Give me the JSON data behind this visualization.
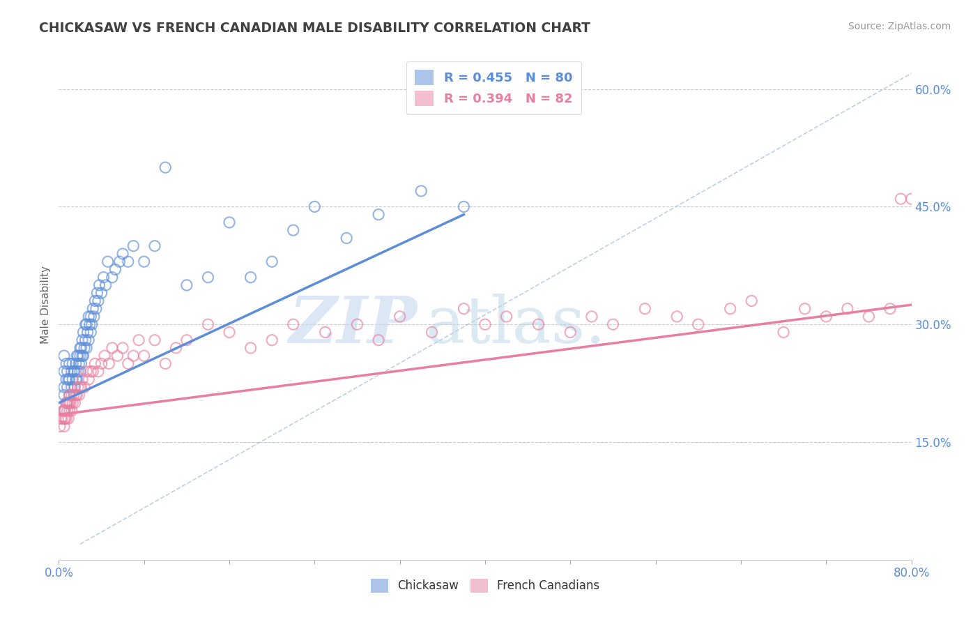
{
  "title": "CHICKASAW VS FRENCH CANADIAN MALE DISABILITY CORRELATION CHART",
  "source": "Source: ZipAtlas.com",
  "ylabel": "Male Disability",
  "xlim": [
    0.0,
    0.8
  ],
  "ylim": [
    0.0,
    0.65
  ],
  "x_ticks": [
    0.0,
    0.08,
    0.16,
    0.24,
    0.32,
    0.4,
    0.48,
    0.56,
    0.64,
    0.72,
    0.8
  ],
  "x_tick_labels": [
    "0.0%",
    "",
    "",
    "",
    "",
    "",
    "",
    "",
    "",
    "",
    "80.0%"
  ],
  "y_ticks": [
    0.15,
    0.3,
    0.45,
    0.6
  ],
  "y_tick_labels": [
    "15.0%",
    "30.0%",
    "45.0%",
    "60.0%"
  ],
  "legend_entries": [
    {
      "label": "R = 0.455   N = 80",
      "color": "#5b8dd9"
    },
    {
      "label": "R = 0.394   N = 82",
      "color": "#e87fa0"
    }
  ],
  "chickasaw_color": "#5b8dd9",
  "french_color": "#e87fa0",
  "chickasaw_scatter": {
    "x": [
      0.005,
      0.005,
      0.005,
      0.005,
      0.005,
      0.007,
      0.007,
      0.007,
      0.008,
      0.008,
      0.009,
      0.01,
      0.01,
      0.01,
      0.012,
      0.012,
      0.013,
      0.013,
      0.014,
      0.015,
      0.015,
      0.016,
      0.016,
      0.017,
      0.017,
      0.018,
      0.018,
      0.019,
      0.02,
      0.02,
      0.02,
      0.021,
      0.021,
      0.022,
      0.022,
      0.023,
      0.023,
      0.024,
      0.025,
      0.025,
      0.026,
      0.026,
      0.027,
      0.028,
      0.028,
      0.029,
      0.03,
      0.03,
      0.031,
      0.032,
      0.033,
      0.034,
      0.035,
      0.036,
      0.037,
      0.038,
      0.04,
      0.042,
      0.044,
      0.046,
      0.05,
      0.053,
      0.057,
      0.06,
      0.065,
      0.07,
      0.08,
      0.09,
      0.1,
      0.12,
      0.14,
      0.16,
      0.18,
      0.2,
      0.22,
      0.24,
      0.27,
      0.3,
      0.34,
      0.38
    ],
    "y": [
      0.19,
      0.21,
      0.22,
      0.24,
      0.26,
      0.2,
      0.23,
      0.25,
      0.22,
      0.24,
      0.23,
      0.21,
      0.23,
      0.25,
      0.22,
      0.24,
      0.23,
      0.25,
      0.24,
      0.22,
      0.24,
      0.23,
      0.25,
      0.23,
      0.26,
      0.24,
      0.26,
      0.25,
      0.24,
      0.26,
      0.27,
      0.25,
      0.27,
      0.26,
      0.28,
      0.26,
      0.29,
      0.27,
      0.28,
      0.3,
      0.27,
      0.3,
      0.29,
      0.28,
      0.31,
      0.3,
      0.29,
      0.31,
      0.3,
      0.32,
      0.31,
      0.33,
      0.32,
      0.34,
      0.33,
      0.35,
      0.34,
      0.36,
      0.35,
      0.38,
      0.36,
      0.37,
      0.38,
      0.39,
      0.38,
      0.4,
      0.38,
      0.4,
      0.5,
      0.35,
      0.36,
      0.43,
      0.36,
      0.38,
      0.42,
      0.45,
      0.41,
      0.44,
      0.47,
      0.45
    ]
  },
  "french_scatter": {
    "x": [
      0.001,
      0.002,
      0.003,
      0.004,
      0.005,
      0.005,
      0.005,
      0.006,
      0.006,
      0.007,
      0.007,
      0.008,
      0.008,
      0.009,
      0.009,
      0.01,
      0.01,
      0.01,
      0.011,
      0.012,
      0.012,
      0.013,
      0.014,
      0.015,
      0.016,
      0.017,
      0.018,
      0.019,
      0.02,
      0.021,
      0.022,
      0.024,
      0.026,
      0.028,
      0.03,
      0.032,
      0.034,
      0.037,
      0.04,
      0.043,
      0.047,
      0.05,
      0.055,
      0.06,
      0.065,
      0.07,
      0.075,
      0.08,
      0.09,
      0.1,
      0.11,
      0.12,
      0.14,
      0.16,
      0.18,
      0.2,
      0.22,
      0.25,
      0.28,
      0.3,
      0.32,
      0.35,
      0.38,
      0.4,
      0.42,
      0.45,
      0.48,
      0.5,
      0.52,
      0.55,
      0.58,
      0.6,
      0.63,
      0.65,
      0.68,
      0.7,
      0.72,
      0.74,
      0.76,
      0.78,
      0.79,
      0.8
    ],
    "y": [
      0.17,
      0.18,
      0.18,
      0.19,
      0.17,
      0.18,
      0.19,
      0.18,
      0.19,
      0.18,
      0.2,
      0.19,
      0.2,
      0.18,
      0.2,
      0.19,
      0.2,
      0.21,
      0.2,
      0.19,
      0.21,
      0.2,
      0.21,
      0.2,
      0.21,
      0.21,
      0.22,
      0.21,
      0.22,
      0.22,
      0.23,
      0.22,
      0.24,
      0.23,
      0.24,
      0.24,
      0.25,
      0.24,
      0.25,
      0.26,
      0.25,
      0.27,
      0.26,
      0.27,
      0.25,
      0.26,
      0.28,
      0.26,
      0.28,
      0.25,
      0.27,
      0.28,
      0.3,
      0.29,
      0.27,
      0.28,
      0.3,
      0.29,
      0.3,
      0.28,
      0.31,
      0.29,
      0.32,
      0.3,
      0.31,
      0.3,
      0.29,
      0.31,
      0.3,
      0.32,
      0.31,
      0.3,
      0.32,
      0.33,
      0.29,
      0.32,
      0.31,
      0.32,
      0.31,
      0.32,
      0.46,
      0.46
    ]
  },
  "chickasaw_trend": {
    "x_start": 0.0,
    "x_end": 0.38,
    "y_start": 0.2,
    "y_end": 0.44
  },
  "french_trend": {
    "x_start": 0.0,
    "x_end": 0.8,
    "y_start": 0.185,
    "y_end": 0.325
  },
  "diagonal_line": {
    "x_start": 0.02,
    "x_end": 0.8,
    "y_start": 0.02,
    "y_end": 0.62
  },
  "watermark_zip": "ZIP",
  "watermark_atlas": "atlas.",
  "background_color": "#ffffff",
  "grid_color": "#cccccc",
  "title_color": "#404040",
  "tick_label_color": "#5b8dd9"
}
